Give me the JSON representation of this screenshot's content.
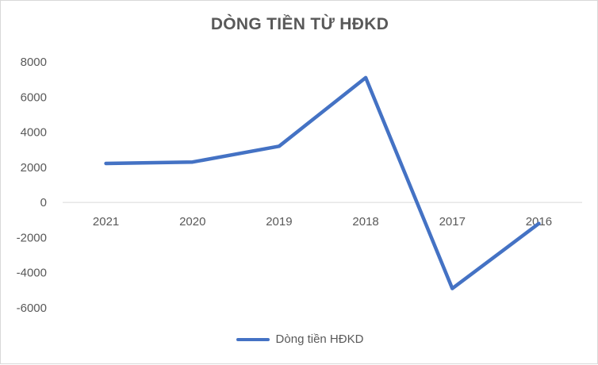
{
  "chart_data": {
    "type": "line",
    "title": "DÒNG TIỀN TỪ HĐKD",
    "categories": [
      "2021",
      "2020",
      "2019",
      "2018",
      "2017",
      "2016"
    ],
    "series": [
      {
        "name": "Dòng tiền HĐKD",
        "values": [
          2220,
          2300,
          3200,
          7100,
          -4900,
          -1200
        ],
        "color": "#4472c4"
      }
    ],
    "ylim": [
      -6000,
      8000
    ],
    "yticks": [
      8000,
      6000,
      4000,
      2000,
      0,
      -2000,
      -4000,
      -6000
    ],
    "grid": false,
    "legend": "bottom",
    "xlabel": "",
    "ylabel": ""
  }
}
